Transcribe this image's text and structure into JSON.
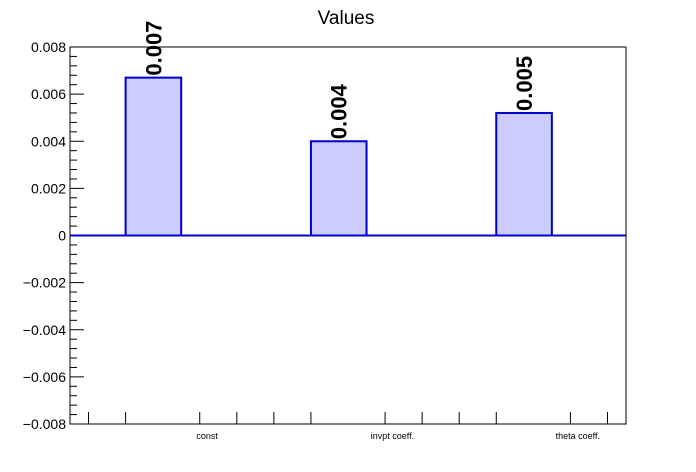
{
  "chart_data": {
    "type": "bar",
    "title": "Values",
    "categories": [
      "const",
      "invpt coeff.",
      "theta coeff."
    ],
    "values": [
      0.0067,
      0.004,
      0.0052
    ],
    "data_labels": [
      "0.007",
      "0.004",
      "0.005"
    ],
    "ylim": [
      -0.008,
      0.008
    ],
    "yticks": [
      {
        "value": 0.008,
        "label": "0.008"
      },
      {
        "value": 0.006,
        "label": "0.006"
      },
      {
        "value": 0.004,
        "label": "0.004"
      },
      {
        "value": 0.002,
        "label": "0.002"
      },
      {
        "value": 0,
        "label": "0"
      },
      {
        "value": -0.002,
        "label": "−0.002"
      },
      {
        "value": -0.004,
        "label": "−0.004"
      },
      {
        "value": -0.006,
        "label": "−0.006"
      },
      {
        "value": -0.008,
        "label": "−0.008"
      }
    ],
    "grid": false,
    "legend": "none",
    "colors": {
      "bar_fill": "#ccccff",
      "bar_stroke": "#0000cc",
      "axis": "#000000"
    }
  }
}
